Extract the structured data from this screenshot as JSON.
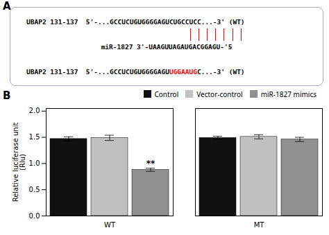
{
  "chart_data": [
    {
      "type": "text",
      "title": "A",
      "annotations": [
        {
          "text": "UBAP2 131-137  5'-...GCCUCUGUGGGGAGUCUGCCUCC...-3' (WT)"
        },
        {
          "text": "miR-1827 3'-UAAGUUAGAUGACGGAGU-'5"
        },
        {
          "segments": [
            {
              "text": "UBAP2 131-137  5'-...GCCUCUGUGGGGAGU"
            },
            {
              "text": "UGGAAUG",
              "color": "red"
            },
            {
              "text": "C...-3' (WT)"
            }
          ]
        }
      ],
      "links": {
        "count": 7,
        "color": "red"
      }
    },
    {
      "type": "bar",
      "title": "B",
      "categories": [
        "WT",
        "MT"
      ],
      "series": [
        {
          "name": "Control",
          "color": "#111111",
          "values": [
            1.47,
            1.49
          ],
          "errors": [
            0.04,
            0.03
          ]
        },
        {
          "name": "Vector-control",
          "color": "#c0c0c0",
          "values": [
            1.49,
            1.51
          ],
          "errors": [
            0.05,
            0.04
          ]
        },
        {
          "name": "miR-1827 mimics",
          "color": "#909090",
          "values": [
            0.88,
            1.46
          ],
          "errors": [
            0.03,
            0.04
          ]
        }
      ],
      "ylabel": "Relative luciferase unit\n(Rlu)",
      "ylim": [
        0,
        2.05
      ],
      "yticks": [
        {
          "value": 0,
          "label": "0.0"
        },
        0.5,
        {
          "value": 1,
          "label": "1.0"
        },
        1.5,
        {
          "value": 2,
          "label": "2.0"
        }
      ],
      "legend": "upper right",
      "grid": false,
      "annotations": [
        {
          "text": "**",
          "category": "WT",
          "series": "miR-1827 mimics"
        }
      ]
    }
  ]
}
